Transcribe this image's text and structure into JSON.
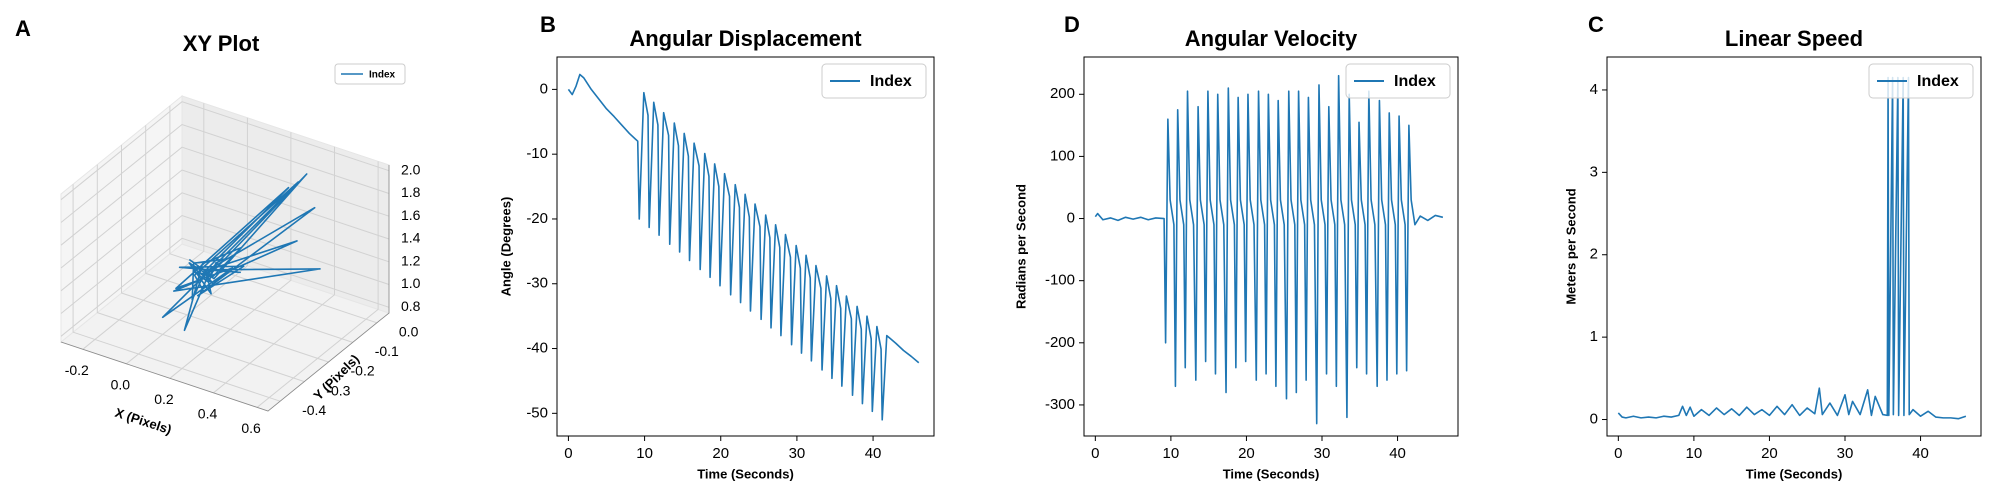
{
  "chart_data": [
    {
      "type": "line3d",
      "panel_label": "A",
      "title": "XY Plot",
      "xlabel": "X (Pixels)",
      "ylabel": "Y (Pixels)",
      "x": [
        -0.1,
        0.05,
        -0.05,
        0.1,
        0.0,
        0.15,
        -0.08,
        0.08,
        0.02,
        0.3,
        -0.05,
        0.12,
        0.0,
        0.4,
        -0.02,
        0.1,
        0.05,
        0.45,
        0.0,
        0.2,
        -0.1,
        0.08,
        0.35,
        0.03,
        -0.06,
        0.5,
        0.02,
        0.1,
        -0.04,
        0.25,
        0.06,
        0.0,
        0.3,
        -0.1,
        0.15,
        0.05,
        0.42,
        0.0,
        0.1,
        -0.05
      ],
      "y": [
        -0.1,
        -0.15,
        -0.12,
        -0.2,
        -0.08,
        -0.18,
        -0.1,
        -0.25,
        -0.14,
        -0.05,
        -0.2,
        -0.12,
        -0.3,
        -0.1,
        -0.15,
        -0.22,
        -0.08,
        -0.15,
        -0.12,
        -0.28,
        -0.1,
        -0.16,
        -0.02,
        -0.14,
        -0.2,
        -0.1,
        -0.12,
        -0.3,
        -0.1,
        -0.2,
        -0.15,
        -0.1,
        -0.25,
        -0.14,
        -0.1,
        -0.2,
        -0.05,
        -0.13,
        -0.18,
        -0.12
      ],
      "series": [
        {
          "name": "Index",
          "color": "#1f77b4",
          "values": [
            1.0,
            1.05,
            0.95,
            1.1,
            1.0,
            1.3,
            0.98,
            1.02,
            1.05,
            1.8,
            0.95,
            1.1,
            0.9,
            2.0,
            1.0,
            1.05,
            0.95,
            1.6,
            1.0,
            1.2,
            0.97,
            1.05,
            1.9,
            1.0,
            0.92,
            1.3,
            1.02,
            0.85,
            1.0,
            1.5,
            1.03,
            0.97,
            1.4,
            1.0,
            1.1,
            0.95,
            1.7,
            1.0,
            1.05,
            0.98
          ]
        }
      ],
      "xlim": [
        -0.3,
        0.65
      ],
      "ylim": [
        -0.45,
        0.05
      ],
      "zlim": [
        0.75,
        2.05
      ],
      "xticks": [
        -0.2,
        {
          "value": 0,
          "label": "0.0"
        },
        0.2,
        0.4,
        0.6
      ],
      "yticks": [
        {
          "value": 0,
          "label": "0.0"
        },
        -0.1,
        -0.2,
        -0.3,
        -0.4
      ],
      "zticks": [
        0.8,
        {
          "value": 1,
          "label": "1.0"
        },
        1.2,
        1.4,
        1.6,
        1.8,
        {
          "value": 2,
          "label": "2.0"
        }
      ],
      "grid": true,
      "legend": "upper right"
    },
    {
      "type": "line",
      "panel_label": "B",
      "title": "Angular Displacement",
      "xlabel": "Time (Seconds)",
      "ylabel": "Angle (Degrees)",
      "x": [
        0,
        0.5,
        1,
        1.5,
        2,
        3,
        4,
        5,
        6,
        7,
        8,
        9.1,
        9.3,
        9.9,
        10.45,
        10.6,
        11.2,
        11.75,
        11.9,
        12.5,
        13.15,
        13.3,
        13.9,
        14.45,
        14.6,
        15.2,
        15.75,
        15.9,
        16.5,
        17.15,
        17.3,
        17.9,
        18.45,
        18.6,
        19.2,
        19.75,
        19.9,
        20.5,
        21.15,
        21.3,
        21.9,
        22.45,
        22.6,
        23.2,
        23.75,
        23.9,
        24.5,
        25.15,
        25.3,
        25.9,
        26.45,
        26.6,
        27.2,
        27.75,
        27.9,
        28.5,
        29.15,
        29.3,
        29.9,
        30.45,
        30.6,
        31.2,
        31.75,
        31.9,
        32.5,
        33.15,
        33.3,
        33.9,
        34.45,
        34.6,
        35.2,
        35.75,
        35.9,
        36.5,
        37.15,
        37.3,
        37.9,
        38.45,
        38.6,
        39.2,
        39.75,
        39.9,
        40.5,
        41.05,
        41.2,
        41.8,
        43,
        44,
        45,
        46
      ],
      "series": [
        {
          "name": "Index",
          "color": "#1f77b4",
          "values": [
            0,
            -0.8,
            0.5,
            2.3,
            1.8,
            0,
            -1.5,
            -3,
            -4.2,
            -5.5,
            -6.8,
            -8,
            -20,
            -0.5,
            -4.0,
            -21.3,
            -2.0,
            -5.5,
            -22.5,
            -3.6,
            -7.1,
            -23.9,
            -5.2,
            -8.7,
            -25.1,
            -6.8,
            -10.3,
            -26.4,
            -8.3,
            -11.8,
            -27.8,
            -9.9,
            -13.4,
            -29.0,
            -11.5,
            -15.0,
            -30.3,
            -13.0,
            -16.5,
            -31.7,
            -14.7,
            -18.2,
            -32.9,
            -16.2,
            -19.7,
            -34.2,
            -17.7,
            -21.2,
            -35.5,
            -19.4,
            -22.9,
            -36.8,
            -20.9,
            -24.4,
            -38.0,
            -22.4,
            -25.9,
            -39.4,
            -24.1,
            -27.6,
            -40.7,
            -25.6,
            -29.1,
            -41.9,
            -27.2,
            -30.7,
            -43.3,
            -28.8,
            -32.3,
            -44.6,
            -30.3,
            -33.8,
            -45.8,
            -31.9,
            -35.4,
            -47.2,
            -33.5,
            -37.0,
            -48.5,
            -35.0,
            -38.5,
            -49.7,
            -36.6,
            -40.1,
            -51.0,
            -38.0,
            -39.2,
            -40.3,
            -41.2,
            -42.2
          ]
        }
      ],
      "xlim": [
        -1.5,
        48
      ],
      "ylim": [
        -53.5,
        5
      ],
      "xticks": [
        0,
        10,
        20,
        30,
        40
      ],
      "yticks": [
        0,
        -10,
        -20,
        -30,
        -40,
        -50
      ],
      "legend": "upper right"
    },
    {
      "type": "line",
      "panel_label": "D",
      "title": "Angular Velocity",
      "xlabel": "Time (Seconds)",
      "ylabel": "Radians per Second",
      "x": [
        0,
        0.3,
        1,
        2,
        3,
        4,
        5,
        6,
        7,
        8,
        9.1,
        9.3,
        9.6,
        9.9,
        10.4,
        10.6,
        10.9,
        11.2,
        11.7,
        11.9,
        12.2,
        12.5,
        13.0,
        13.3,
        13.6,
        13.9,
        14.4,
        14.6,
        14.9,
        15.2,
        15.7,
        15.9,
        16.2,
        16.5,
        17.0,
        17.3,
        17.6,
        17.9,
        18.4,
        18.6,
        18.9,
        19.2,
        19.7,
        19.9,
        20.2,
        20.5,
        21.0,
        21.3,
        21.6,
        21.9,
        22.4,
        22.6,
        22.9,
        23.2,
        23.7,
        23.9,
        24.2,
        24.5,
        25.0,
        25.3,
        25.6,
        25.9,
        26.4,
        26.6,
        26.9,
        27.2,
        27.7,
        27.9,
        28.2,
        28.5,
        29.0,
        29.3,
        29.6,
        29.9,
        30.4,
        30.6,
        30.9,
        31.2,
        31.7,
        31.9,
        32.2,
        32.5,
        33.0,
        33.3,
        33.6,
        33.9,
        34.4,
        34.6,
        34.9,
        35.2,
        35.7,
        35.9,
        36.2,
        36.5,
        37.0,
        37.3,
        37.6,
        37.9,
        38.4,
        38.6,
        38.9,
        39.2,
        39.7,
        39.9,
        40.2,
        40.5,
        41.0,
        41.2,
        41.5,
        41.8,
        42.3,
        43,
        44,
        45,
        46
      ],
      "series": [
        {
          "name": "Index",
          "color": "#1f77b4",
          "values": [
            3,
            8,
            -2,
            1,
            -3,
            2,
            -1,
            2,
            -2,
            1,
            0,
            -200,
            160,
            30,
            -10,
            -270,
            175,
            30,
            -10,
            -240,
            205,
            30,
            -10,
            -260,
            180,
            30,
            -10,
            -230,
            205,
            30,
            -10,
            -250,
            200,
            30,
            -10,
            -280,
            210,
            30,
            -10,
            -240,
            195,
            30,
            -10,
            -230,
            200,
            30,
            -10,
            -260,
            205,
            30,
            -10,
            -250,
            200,
            30,
            -10,
            -270,
            190,
            30,
            -10,
            -290,
            205,
            30,
            -10,
            -280,
            205,
            30,
            -10,
            -260,
            195,
            30,
            -10,
            -330,
            215,
            30,
            -10,
            -250,
            180,
            30,
            -10,
            -270,
            230,
            30,
            -10,
            -320,
            200,
            30,
            -10,
            -240,
            155,
            30,
            -10,
            -250,
            205,
            30,
            -10,
            -270,
            190,
            30,
            -10,
            -260,
            170,
            30,
            -10,
            -250,
            165,
            30,
            -10,
            -245,
            150,
            30,
            -10,
            4,
            -3,
            5,
            2
          ]
        }
      ],
      "xlim": [
        -1.5,
        48
      ],
      "ylim": [
        -350,
        260
      ],
      "xticks": [
        0,
        10,
        20,
        30,
        40
      ],
      "yticks": [
        -300,
        -200,
        -100,
        0,
        100,
        200
      ],
      "legend": "upper right"
    },
    {
      "type": "line",
      "panel_label": "C",
      "title": "Linear Speed",
      "xlabel": "Time (Seconds)",
      "ylabel": "Meters per Second",
      "x": [
        0,
        0.5,
        1,
        2,
        3,
        4,
        5,
        6,
        7,
        8,
        8.5,
        9,
        9.5,
        10,
        11,
        12,
        13,
        14,
        15,
        16,
        17,
        18,
        19,
        20,
        21,
        22,
        23,
        24,
        25,
        26,
        26.6,
        27,
        28,
        29,
        30,
        30.5,
        31,
        32,
        33,
        33.5,
        34,
        35,
        35.6,
        35.7,
        35.8,
        36.3,
        36.4,
        37.0,
        37.1,
        37.7,
        37.8,
        38.4,
        38.5,
        39,
        40,
        41,
        42,
        43,
        44,
        45,
        46
      ],
      "series": [
        {
          "name": "Index",
          "color": "#1f77b4",
          "values": [
            0.08,
            0.03,
            0.02,
            0.04,
            0.02,
            0.03,
            0.02,
            0.04,
            0.03,
            0.05,
            0.16,
            0.05,
            0.15,
            0.04,
            0.12,
            0.05,
            0.14,
            0.06,
            0.13,
            0.05,
            0.15,
            0.06,
            0.12,
            0.05,
            0.16,
            0.06,
            0.18,
            0.05,
            0.14,
            0.07,
            0.38,
            0.06,
            0.2,
            0.05,
            0.3,
            0.06,
            0.22,
            0.06,
            0.36,
            0.05,
            0.28,
            0.06,
            0.05,
            4.15,
            0.05,
            4.15,
            0.06,
            4.15,
            0.05,
            4.15,
            0.05,
            4.15,
            0.06,
            0.12,
            0.04,
            0.1,
            0.03,
            0.02,
            0.02,
            0.01,
            0.04
          ]
        }
      ],
      "xlim": [
        -1.5,
        48
      ],
      "ylim": [
        -0.2,
        4.4
      ],
      "xticks": [
        0,
        10,
        20,
        30,
        40
      ],
      "yticks": [
        0,
        1,
        2,
        3,
        4
      ],
      "legend": "upper right"
    }
  ]
}
